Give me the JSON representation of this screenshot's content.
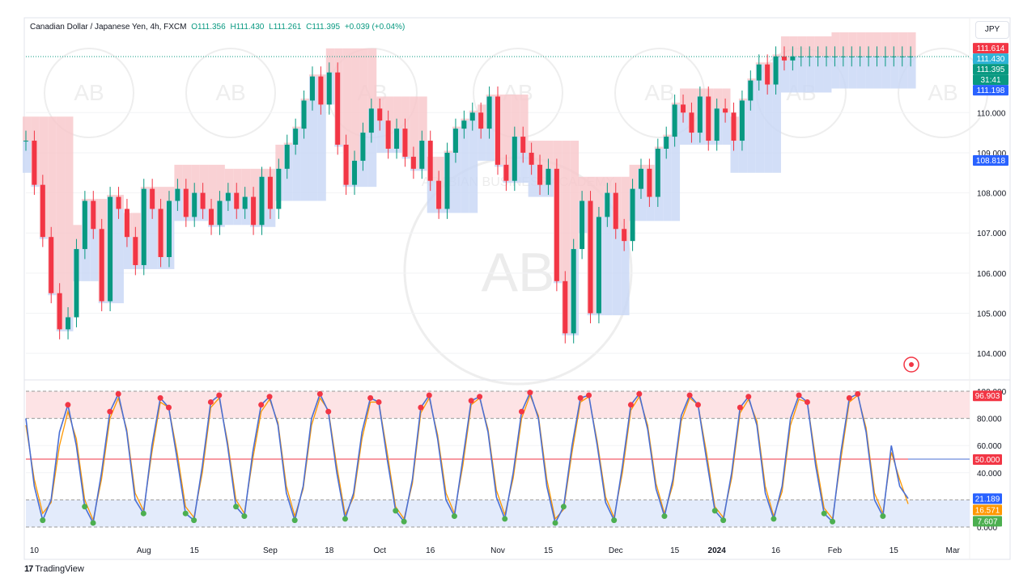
{
  "header": {
    "symbol": "Canadian Dollar / Japanese Yen, 4h, FXCM",
    "open": "O111.356",
    "high": "H111.430",
    "low": "L111.261",
    "close": "C111.395",
    "change": "+0.039 (+0.04%)"
  },
  "currency_button": "JPY",
  "branding": "TradingView",
  "watermark": "ARABIAN BUSINESS ACADEMY",
  "watermark_initials": "AB",
  "colors": {
    "up": "#089981",
    "down": "#f23645",
    "resistance_fill": "#f7c6c9",
    "support_fill": "#c7d6f5",
    "stoch_k": "#4a6fd4",
    "stoch_d": "#ff9800",
    "overbought_dot": "#f23645",
    "oversold_dot": "#4caf50"
  },
  "price_labels": [
    {
      "text": "111.614",
      "bg": "#f23645"
    },
    {
      "text": "111.430",
      "bg": "#2eb4d8"
    },
    {
      "text": "111.395",
      "bg": "#089981"
    },
    {
      "text": "31:41",
      "bg": "#089981"
    },
    {
      "text": "111.198",
      "bg": "#2962ff"
    },
    {
      "text": "108.818",
      "bg": "#2962ff"
    }
  ],
  "osc_labels": [
    {
      "text": "96.903",
      "bg": "#f23645"
    },
    {
      "text": "50.000",
      "bg": "#f23645"
    },
    {
      "text": "21.189",
      "bg": "#2962ff"
    },
    {
      "text": "16.571",
      "bg": "#ff9800"
    },
    {
      "text": "7.607",
      "bg": "#4caf50"
    }
  ],
  "chart_data": [
    {
      "type": "candlestick",
      "title": "Canadian Dollar / Japanese Yen, 4h, FXCM",
      "ylim": [
        103.5,
        112.0
      ],
      "y_ticks": [
        "104.000",
        "105.000",
        "106.000",
        "107.000",
        "108.000",
        "109.000",
        "110.000"
      ],
      "y_tick_values": [
        104,
        105,
        106,
        107,
        108,
        109,
        110
      ],
      "x_ticks": [
        "10",
        "Aug",
        "15",
        "Sep",
        "18",
        "Oct",
        "16",
        "Nov",
        "15",
        "Dec",
        "15",
        "2024",
        "16",
        "Feb",
        "15",
        "Mar"
      ],
      "x_tick_values": [
        1,
        14,
        20,
        29,
        36,
        42,
        48,
        56,
        62,
        70,
        77,
        82,
        89,
        96,
        103,
        110
      ],
      "x_range": [
        0,
        112
      ],
      "series": [
        {
          "name": "close",
          "x": [
            0,
            1,
            2,
            3,
            4,
            5,
            6,
            7,
            8,
            9,
            10,
            11,
            12,
            13,
            14,
            15,
            16,
            17,
            18,
            19,
            20,
            21,
            22,
            23,
            24,
            25,
            26,
            27,
            28,
            29,
            30,
            31,
            32,
            33,
            34,
            35,
            36,
            37,
            38,
            39,
            40,
            41,
            42,
            43,
            44,
            45,
            46,
            47,
            48,
            49,
            50,
            51,
            52,
            53,
            54,
            55,
            56,
            57,
            58,
            59,
            60,
            61,
            62,
            63,
            64,
            65,
            66,
            67,
            68,
            69,
            70,
            71,
            72,
            73,
            74,
            75,
            76,
            77,
            78,
            79,
            80,
            81,
            82,
            83,
            84,
            85,
            86,
            87,
            88,
            89,
            90,
            91,
            92,
            93,
            94,
            95,
            96,
            97,
            98,
            99,
            100,
            101,
            102,
            103,
            104,
            105
          ],
          "values": [
            109.3,
            108.2,
            106.9,
            105.5,
            104.6,
            104.9,
            106.6,
            107.8,
            107.1,
            105.3,
            107.9,
            107.6,
            106.9,
            106.2,
            108.1,
            107.6,
            106.4,
            107.8,
            108.1,
            107.4,
            108.0,
            107.6,
            107.2,
            107.8,
            108.0,
            107.6,
            107.9,
            107.2,
            108.4,
            107.6,
            108.6,
            109.2,
            109.6,
            110.3,
            110.9,
            110.2,
            111.0,
            109.2,
            108.2,
            108.8,
            109.5,
            110.1,
            109.8,
            109.1,
            109.6,
            108.9,
            108.6,
            109.3,
            108.3,
            107.6,
            109.0,
            109.6,
            109.8,
            110.0,
            109.6,
            110.4,
            108.7,
            108.3,
            109.4,
            109.0,
            108.7,
            108.2,
            108.6,
            105.8,
            104.5,
            106.6,
            107.8,
            105.0,
            107.4,
            108.0,
            107.1,
            106.8,
            108.1,
            108.6,
            107.9,
            109.1,
            109.4,
            110.2,
            110.0,
            109.5,
            110.4,
            109.3,
            110.1,
            110.0,
            109.3,
            110.3,
            110.8,
            111.2,
            110.7,
            111.4,
            111.3,
            111.4,
            111.4,
            111.4,
            111.4,
            111.4,
            111.4,
            111.4,
            111.4,
            111.4,
            111.4,
            111.4,
            111.4,
            111.4,
            111.4,
            111.4
          ]
        }
      ]
    },
    {
      "type": "line",
      "title": "Stochastic",
      "ylim": [
        0,
        100
      ],
      "y_ticks": [
        "0.000",
        "20.000",
        "40.000",
        "60.000",
        "80.000",
        "100.000"
      ],
      "y_tick_values": [
        0,
        20,
        40,
        60,
        80,
        100
      ],
      "levels": [
        80,
        50,
        20
      ],
      "series": [
        {
          "name": "%K",
          "values": [
            80,
            30,
            5,
            20,
            70,
            90,
            60,
            15,
            3,
            40,
            85,
            98,
            70,
            20,
            10,
            60,
            95,
            88,
            50,
            10,
            5,
            45,
            92,
            97,
            60,
            15,
            8,
            55,
            90,
            96,
            75,
            25,
            5,
            30,
            80,
            98,
            85,
            40,
            6,
            25,
            70,
            95,
            92,
            50,
            12,
            4,
            35,
            88,
            97,
            65,
            20,
            8,
            50,
            93,
            96,
            70,
            22,
            6,
            40,
            85,
            99,
            80,
            30,
            3,
            15,
            60,
            95,
            97,
            60,
            18,
            5,
            45,
            90,
            98,
            72,
            28,
            8,
            35,
            82,
            97,
            90,
            50,
            12,
            5,
            40,
            88,
            96,
            75,
            25,
            6,
            30,
            80,
            97,
            92,
            45,
            10,
            4,
            55,
            95,
            98,
            70,
            20,
            8,
            60,
            30,
            21
          ]
        },
        {
          "name": "%D",
          "values": [
            75,
            35,
            10,
            18,
            60,
            85,
            65,
            20,
            5,
            35,
            80,
            95,
            72,
            25,
            12,
            55,
            92,
            88,
            55,
            15,
            7,
            40,
            88,
            95,
            63,
            20,
            10,
            50,
            85,
            94,
            77,
            30,
            8,
            28,
            75,
            95,
            86,
            45,
            9,
            22,
            65,
            92,
            92,
            55,
            15,
            6,
            32,
            84,
            95,
            68,
            25,
            10,
            45,
            90,
            95,
            72,
            27,
            9,
            36,
            80,
            97,
            82,
            35,
            6,
            13,
            55,
            92,
            96,
            63,
            22,
            7,
            40,
            86,
            96,
            75,
            32,
            10,
            31,
            78,
            95,
            90,
            55,
            15,
            7,
            36,
            84,
            94,
            78,
            30,
            8,
            26,
            75,
            94,
            92,
            50,
            14,
            6,
            50,
            92,
            97,
            73,
            25,
            10,
            55,
            35,
            17
          ]
        }
      ]
    }
  ]
}
